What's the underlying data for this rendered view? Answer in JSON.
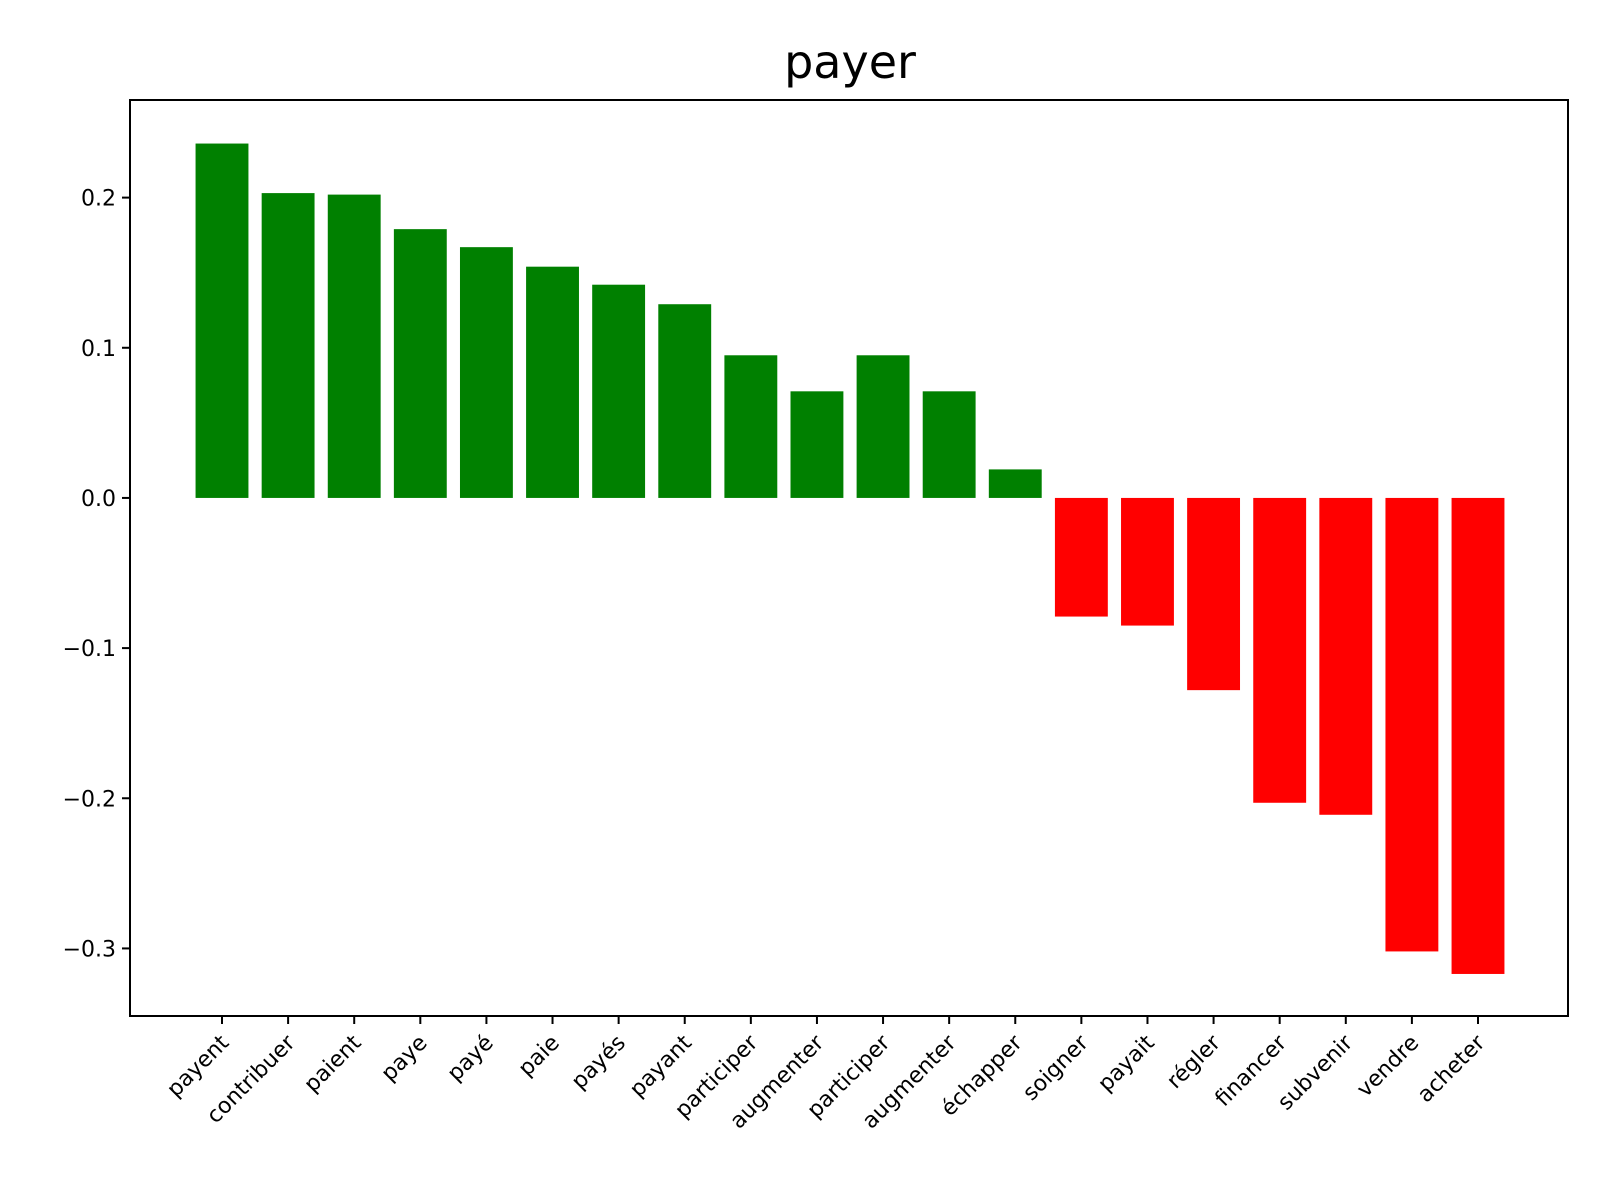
{
  "chart_data": {
    "type": "bar",
    "title": "payer",
    "xlabel": "",
    "ylabel": "",
    "categories": [
      "payent",
      "contribuer",
      "paient",
      "paye",
      "payé",
      "paie",
      "payés",
      "payant",
      "participer",
      "augmenter",
      "participer",
      "augmenter",
      "échapper",
      "soigner",
      "payait",
      "régler",
      "financer",
      "subvenir",
      "vendre",
      "acheter"
    ],
    "values": [
      0.236,
      0.203,
      0.202,
      0.179,
      0.167,
      0.154,
      0.142,
      0.129,
      0.095,
      0.071,
      0.095,
      0.071,
      0.019,
      -0.079,
      -0.085,
      -0.128,
      -0.203,
      -0.211,
      -0.302,
      -0.317
    ],
    "ylim": [
      -0.345,
      0.265
    ],
    "yticks": [
      0.2,
      0.1,
      0.0,
      -0.1,
      -0.2,
      -0.3
    ],
    "ytick_labels": [
      "0.2",
      "0.1",
      "0.0",
      "−0.1",
      "−0.2",
      "−0.3"
    ],
    "positive_color": "#008000",
    "negative_color": "#ff0000",
    "grid": false,
    "legend": "none"
  }
}
